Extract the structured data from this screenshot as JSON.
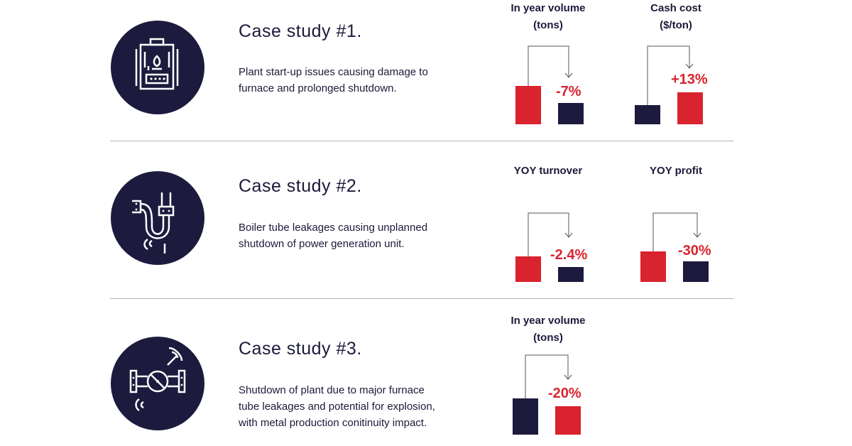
{
  "cases": [
    {
      "title": "Case study #1.",
      "description": [
        "Plant start-up issues causing damage to",
        "furnace and prolonged shutdown."
      ],
      "icon": "furnace-icon",
      "metrics": [
        {
          "label": [
            "In year volume",
            "(tons)"
          ],
          "delta": "-7%",
          "bars": {
            "before": "red",
            "after": "navy"
          }
        },
        {
          "label": [
            "Cash cost",
            "($/ton)"
          ],
          "delta": "+13%",
          "bars": {
            "before": "navy",
            "after": "red"
          }
        }
      ]
    },
    {
      "title": "Case study #2.",
      "description": [
        "Boiler tube leakages causing unplanned",
        "shutdown of power generation unit."
      ],
      "icon": "leaking-pipe-icon",
      "metrics": [
        {
          "label": [
            "YOY turnover"
          ],
          "delta": "-2.4%",
          "bars": {
            "before": "red",
            "after": "navy"
          }
        },
        {
          "label": [
            "YOY profit"
          ],
          "delta": "-30%",
          "bars": {
            "before": "red",
            "after": "navy"
          }
        }
      ]
    },
    {
      "title": "Case study #3.",
      "description": [
        "Shutdown of plant due to major furnace",
        "tube leakages and potential for explosion,",
        "with metal production conitinuity impact."
      ],
      "icon": "valve-pipe-icon",
      "metrics": [
        {
          "label": [
            "In year volume",
            "(tons)"
          ],
          "delta": "-20%",
          "bars": {
            "before": "navy",
            "after": "red"
          }
        }
      ]
    }
  ],
  "colors": {
    "accent_red": "#d9232e",
    "navy": "#1c1a3d",
    "divider": "#b5b5b5"
  }
}
